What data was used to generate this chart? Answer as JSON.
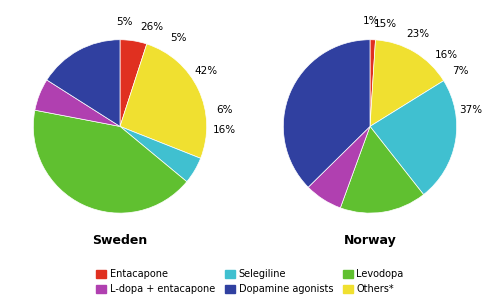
{
  "sweden": {
    "values": [
      5,
      26,
      5,
      42,
      6,
      16
    ],
    "colors": [
      "#e03020",
      "#f0e030",
      "#40c0d0",
      "#60c030",
      "#b040b0",
      "#3040a0"
    ],
    "pct_labels": [
      "5%",
      "26%",
      "5%",
      "42%",
      "6%",
      "16%"
    ],
    "label_r": [
      1.2,
      1.2,
      1.22,
      1.18,
      1.22,
      1.2
    ],
    "startangle": 90
  },
  "norway": {
    "values": [
      1,
      15,
      23,
      16,
      7,
      37
    ],
    "colors": [
      "#e03020",
      "#f0e030",
      "#40c0d0",
      "#60c030",
      "#b040b0",
      "#3040a0"
    ],
    "pct_labels": [
      "1%",
      "15%",
      "23%",
      "16%",
      "7%",
      "37%"
    ],
    "label_r": [
      1.22,
      1.2,
      1.2,
      1.2,
      1.22,
      1.18
    ],
    "startangle": 90
  },
  "legend_items": [
    {
      "label": "Entacapone",
      "color": "#e03020"
    },
    {
      "label": "L-dopa + entacapone",
      "color": "#b040b0"
    },
    {
      "label": "Selegiline",
      "color": "#40c0d0"
    },
    {
      "label": "Dopamine agonists",
      "color": "#3040a0"
    },
    {
      "label": "Levodopa",
      "color": "#60c030"
    },
    {
      "label": "Others*",
      "color": "#f0e030"
    }
  ],
  "title_sweden": "Sweden",
  "title_norway": "Norway",
  "fig_width": 5.0,
  "fig_height": 3.01
}
